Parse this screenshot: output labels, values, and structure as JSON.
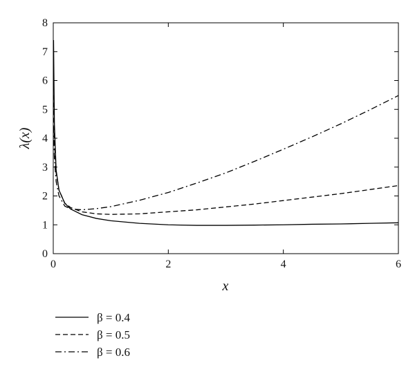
{
  "chart_data": {
    "type": "line",
    "title": "",
    "xlabel": "x",
    "ylabel": "λ(x)",
    "xlim": [
      0,
      6
    ],
    "ylim": [
      0,
      8
    ],
    "x_ticks": [
      "0",
      "2",
      "4",
      "6"
    ],
    "y_ticks": [
      "0",
      "1",
      "2",
      "3",
      "4",
      "5",
      "6",
      "7",
      "8"
    ],
    "grid": false,
    "legend_position": "below-left",
    "series": [
      {
        "name": "β = 0.4",
        "style": "solid",
        "points": [
          [
            0.005,
            7.4
          ],
          [
            0.02,
            4.5
          ],
          [
            0.05,
            2.9
          ],
          [
            0.1,
            2.2
          ],
          [
            0.2,
            1.75
          ],
          [
            0.3,
            1.55
          ],
          [
            0.5,
            1.35
          ],
          [
            0.75,
            1.22
          ],
          [
            1.0,
            1.14
          ],
          [
            1.5,
            1.05
          ],
          [
            2.0,
            1.0
          ],
          [
            2.5,
            0.98
          ],
          [
            3.0,
            0.98
          ],
          [
            3.5,
            0.99
          ],
          [
            4.0,
            1.0
          ],
          [
            4.5,
            1.02
          ],
          [
            5.0,
            1.03
          ],
          [
            5.5,
            1.05
          ],
          [
            6.0,
            1.07
          ]
        ]
      },
      {
        "name": "β = 0.5",
        "style": "dashed",
        "points": [
          [
            0.005,
            5.5
          ],
          [
            0.02,
            3.9
          ],
          [
            0.05,
            2.8
          ],
          [
            0.1,
            2.2
          ],
          [
            0.2,
            1.75
          ],
          [
            0.3,
            1.6
          ],
          [
            0.5,
            1.45
          ],
          [
            0.75,
            1.38
          ],
          [
            1.0,
            1.36
          ],
          [
            1.5,
            1.38
          ],
          [
            2.0,
            1.45
          ],
          [
            2.5,
            1.52
          ],
          [
            3.0,
            1.62
          ],
          [
            3.5,
            1.72
          ],
          [
            4.0,
            1.84
          ],
          [
            4.5,
            1.96
          ],
          [
            5.0,
            2.08
          ],
          [
            5.5,
            2.22
          ],
          [
            6.0,
            2.36
          ]
        ]
      },
      {
        "name": "β = 0.6",
        "style": "dashdot",
        "points": [
          [
            0.005,
            4.4
          ],
          [
            0.02,
            3.3
          ],
          [
            0.05,
            2.5
          ],
          [
            0.1,
            2.0
          ],
          [
            0.2,
            1.65
          ],
          [
            0.3,
            1.55
          ],
          [
            0.5,
            1.52
          ],
          [
            0.75,
            1.56
          ],
          [
            1.0,
            1.63
          ],
          [
            1.5,
            1.85
          ],
          [
            2.0,
            2.12
          ],
          [
            2.5,
            2.45
          ],
          [
            3.0,
            2.8
          ],
          [
            3.5,
            3.2
          ],
          [
            4.0,
            3.62
          ],
          [
            4.5,
            4.05
          ],
          [
            5.0,
            4.5
          ],
          [
            5.5,
            4.98
          ],
          [
            6.0,
            5.48
          ]
        ]
      }
    ]
  }
}
